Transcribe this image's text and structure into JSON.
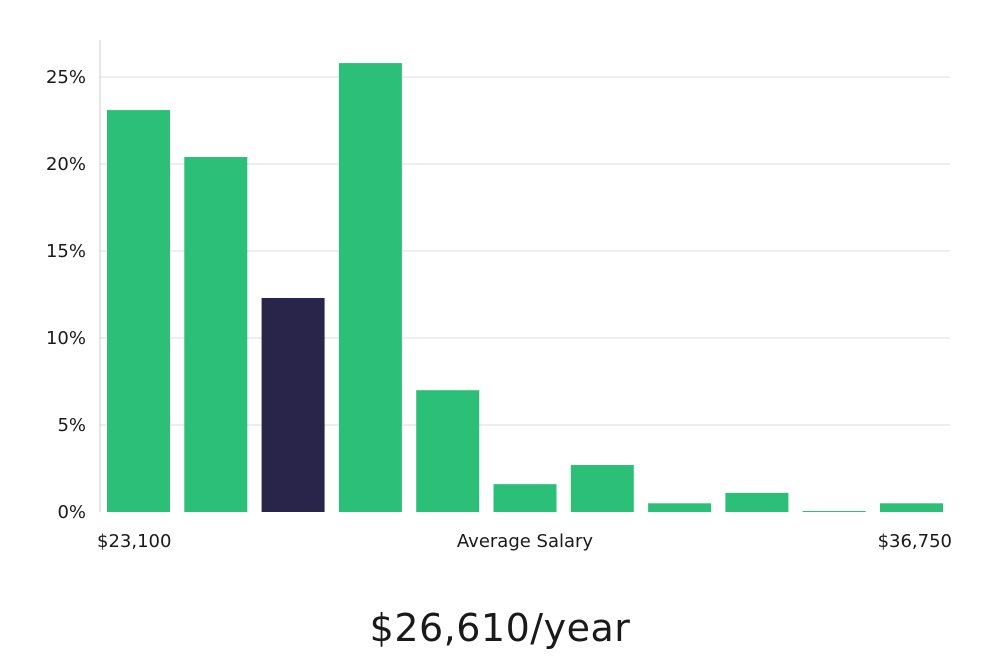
{
  "chart_data": {
    "type": "bar",
    "title": "",
    "xlabel": "Average Salary",
    "ylabel": "",
    "x_min_label": "$23,100",
    "x_max_label": "$36,750",
    "ylim": [
      0,
      27
    ],
    "yticks": [
      0,
      5,
      10,
      15,
      20,
      25
    ],
    "ytick_labels": [
      "0%",
      "5%",
      "10%",
      "15%",
      "20%",
      "25%"
    ],
    "values": [
      23.1,
      20.4,
      12.3,
      25.8,
      7.0,
      1.6,
      2.7,
      0.5,
      1.1,
      0.05,
      0.5
    ],
    "highlight_index": 2,
    "grid": true,
    "colors": {
      "bar": "#2bbf77",
      "highlight": "#28244a",
      "grid": "#dddddd",
      "axis": "#cccccc"
    }
  },
  "summary": {
    "salary_text": "$26,610/year"
  }
}
